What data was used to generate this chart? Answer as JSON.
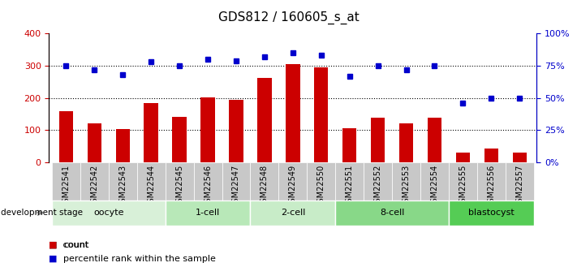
{
  "title": "GDS812 / 160605_s_at",
  "samples": [
    "GSM22541",
    "GSM22542",
    "GSM22543",
    "GSM22544",
    "GSM22545",
    "GSM22546",
    "GSM22547",
    "GSM22548",
    "GSM22549",
    "GSM22550",
    "GSM22551",
    "GSM22552",
    "GSM22553",
    "GSM22554",
    "GSM22555",
    "GSM22556",
    "GSM22557"
  ],
  "counts": [
    160,
    120,
    103,
    183,
    142,
    202,
    194,
    263,
    305,
    295,
    105,
    138,
    122,
    138,
    30,
    42,
    30
  ],
  "percentiles": [
    75,
    72,
    68,
    78,
    75,
    80,
    79,
    82,
    85,
    83,
    67,
    75,
    72,
    75,
    46,
    50,
    50
  ],
  "bar_color": "#cc0000",
  "dot_color": "#0000cc",
  "yticks_left": [
    0,
    100,
    200,
    300,
    400
  ],
  "ytick_labels_right": [
    "0%",
    "25%",
    "50%",
    "75%",
    "100%"
  ],
  "groups": [
    {
      "label": "oocyte",
      "start": 0,
      "end": 4,
      "color": "#d8f0d8"
    },
    {
      "label": "1-cell",
      "start": 4,
      "end": 7,
      "color": "#b8e8b8"
    },
    {
      "label": "2-cell",
      "start": 7,
      "end": 10,
      "color": "#c8ecc8"
    },
    {
      "label": "8-cell",
      "start": 10,
      "end": 14,
      "color": "#88d888"
    },
    {
      "label": "blastocyst",
      "start": 14,
      "end": 17,
      "color": "#55cc55"
    }
  ],
  "axis_color_left": "#cc0000",
  "axis_color_right": "#0000cc",
  "title_fontsize": 11,
  "tick_fontsize": 7,
  "bar_width": 0.5
}
